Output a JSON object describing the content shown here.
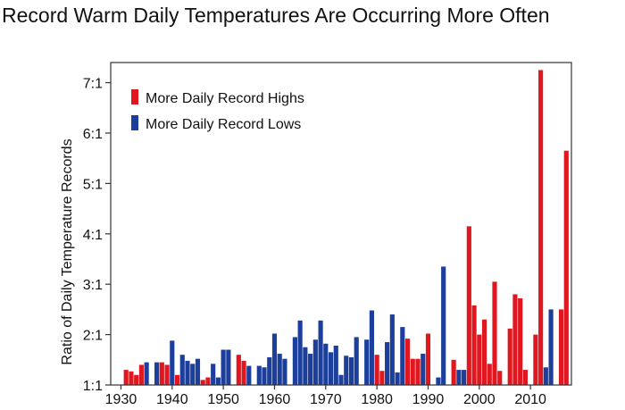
{
  "chart_data": {
    "type": "bar",
    "title": "Record Warm Daily Temperatures Are Occurring More Often",
    "xlabel": "",
    "ylabel": "Ratio of Daily Temperature Records",
    "xlim": [
      1928,
      2018
    ],
    "ylim": [
      1,
      7.4
    ],
    "x_ticks": [
      1930,
      1940,
      1950,
      1960,
      1970,
      1980,
      1990,
      2000,
      2010
    ],
    "y_ticks": [
      {
        "value": 1,
        "label": "1:1"
      },
      {
        "value": 2,
        "label": "2:1"
      },
      {
        "value": 3,
        "label": "3:1"
      },
      {
        "value": 4,
        "label": "4:1"
      },
      {
        "value": 5,
        "label": "5:1"
      },
      {
        "value": 6,
        "label": "6:1"
      },
      {
        "value": 7,
        "label": "7:1"
      }
    ],
    "grid": false,
    "legend_position": "top-left",
    "series": [
      {
        "name": "More Daily Record Highs",
        "color": "#e0171f",
        "points": [
          [
            1931,
            1.3
          ],
          [
            1932,
            1.27
          ],
          [
            1933,
            1.2
          ],
          [
            1934,
            1.4
          ],
          [
            1938,
            1.45
          ],
          [
            1939,
            1.4
          ],
          [
            1941,
            1.2
          ],
          [
            1946,
            1.1
          ],
          [
            1947,
            1.15
          ],
          [
            1953,
            1.6
          ],
          [
            1954,
            1.48
          ],
          [
            1980,
            1.6
          ],
          [
            1981,
            1.28
          ],
          [
            1986,
            1.92
          ],
          [
            1987,
            1.52
          ],
          [
            1988,
            1.52
          ],
          [
            1990,
            2.02
          ],
          [
            1995,
            1.5
          ],
          [
            1998,
            4.15
          ],
          [
            1999,
            2.58
          ],
          [
            2000,
            2.0
          ],
          [
            2001,
            2.3
          ],
          [
            2002,
            1.42
          ],
          [
            2003,
            3.05
          ],
          [
            2004,
            1.28
          ],
          [
            2006,
            2.12
          ],
          [
            2007,
            2.8
          ],
          [
            2008,
            2.72
          ],
          [
            2009,
            1.3
          ],
          [
            2011,
            2.0
          ],
          [
            2012,
            7.25
          ],
          [
            2016,
            2.5
          ],
          [
            2017,
            5.65
          ]
        ]
      },
      {
        "name": "More Daily Record Lows",
        "color": "#1c3f9c",
        "points": [
          [
            1935,
            1.45
          ],
          [
            1937,
            1.45
          ],
          [
            1940,
            1.88
          ],
          [
            1942,
            1.6
          ],
          [
            1943,
            1.48
          ],
          [
            1944,
            1.42
          ],
          [
            1945,
            1.52
          ],
          [
            1948,
            1.42
          ],
          [
            1949,
            1.15
          ],
          [
            1950,
            1.7
          ],
          [
            1951,
            1.7
          ],
          [
            1955,
            1.38
          ],
          [
            1957,
            1.38
          ],
          [
            1958,
            1.35
          ],
          [
            1959,
            1.55
          ],
          [
            1960,
            2.02
          ],
          [
            1961,
            1.62
          ],
          [
            1962,
            1.52
          ],
          [
            1964,
            1.95
          ],
          [
            1965,
            2.28
          ],
          [
            1966,
            1.75
          ],
          [
            1967,
            1.62
          ],
          [
            1968,
            1.9
          ],
          [
            1969,
            2.28
          ],
          [
            1970,
            1.82
          ],
          [
            1971,
            1.65
          ],
          [
            1972,
            1.78
          ],
          [
            1973,
            1.2
          ],
          [
            1974,
            1.58
          ],
          [
            1975,
            1.55
          ],
          [
            1976,
            1.95
          ],
          [
            1978,
            1.9
          ],
          [
            1979,
            2.48
          ],
          [
            1982,
            1.85
          ],
          [
            1983,
            2.4
          ],
          [
            1984,
            1.25
          ],
          [
            1985,
            2.15
          ],
          [
            1989,
            1.62
          ],
          [
            1992,
            1.15
          ],
          [
            1993,
            3.35
          ],
          [
            1996,
            1.3
          ],
          [
            1997,
            1.3
          ],
          [
            2013,
            1.35
          ],
          [
            2014,
            2.5
          ]
        ]
      }
    ]
  }
}
